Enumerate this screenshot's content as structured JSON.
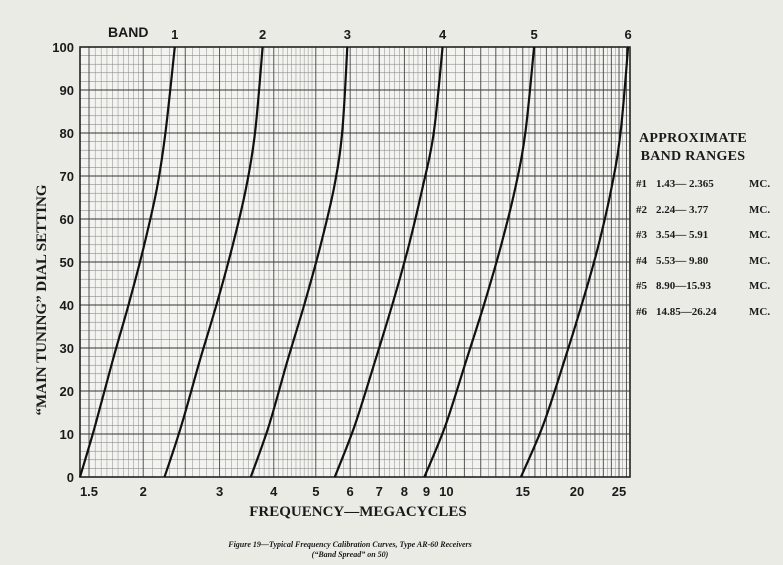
{
  "chart_data": {
    "type": "line",
    "xlabel": "FREQUENCY—MEGACYCLES",
    "ylabel": "“MAIN TUNING” DIAL SETTING",
    "x_scale": "log",
    "xlim": [
      1.43,
      26.5
    ],
    "ylim": [
      0,
      100
    ],
    "grid": true,
    "x_ticks": [
      "1.5",
      "2",
      "3",
      "4",
      "5",
      "6",
      "7",
      "8",
      "9",
      "10",
      "15",
      "20",
      "25"
    ],
    "y_ticks": [
      "0",
      "10",
      "20",
      "30",
      "40",
      "50",
      "60",
      "70",
      "80",
      "90",
      "100"
    ],
    "band_header": "BAND",
    "series": [
      {
        "name": "1",
        "x": [
          1.43,
          1.55,
          1.7,
          1.85,
          2.0,
          2.15,
          2.25,
          2.365
        ],
        "y": [
          0,
          12,
          27,
          40,
          53,
          67,
          80,
          100
        ]
      },
      {
        "name": "2",
        "x": [
          2.24,
          2.45,
          2.7,
          2.95,
          3.2,
          3.45,
          3.62,
          3.77
        ],
        "y": [
          0,
          12,
          27,
          40,
          53,
          67,
          80,
          100
        ]
      },
      {
        "name": "3",
        "x": [
          3.54,
          3.9,
          4.3,
          4.7,
          5.1,
          5.5,
          5.75,
          5.91
        ],
        "y": [
          0,
          12,
          27,
          40,
          53,
          67,
          80,
          100
        ]
      },
      {
        "name": "4",
        "x": [
          5.53,
          6.15,
          6.85,
          7.5,
          8.15,
          8.8,
          9.35,
          9.8
        ],
        "y": [
          0,
          12,
          27,
          40,
          53,
          67,
          80,
          100
        ]
      },
      {
        "name": "5",
        "x": [
          8.9,
          9.95,
          11.1,
          12.2,
          13.3,
          14.4,
          15.2,
          15.93
        ],
        "y": [
          0,
          12,
          27,
          40,
          53,
          67,
          80,
          100
        ]
      },
      {
        "name": "6",
        "x": [
          14.85,
          16.7,
          18.7,
          20.5,
          22.3,
          24.0,
          25.2,
          26.24
        ],
        "y": [
          0,
          12,
          27,
          40,
          53,
          67,
          80,
          100
        ]
      }
    ]
  },
  "legend": {
    "title_line1": "APPROXIMATE",
    "title_line2": "BAND RANGES",
    "rows": [
      {
        "band": "#1",
        "range": "1.43— 2.365",
        "unit": "MC."
      },
      {
        "band": "#2",
        "range": "2.24— 3.77",
        "unit": "MC."
      },
      {
        "band": "#3",
        "range": "3.54— 5.91",
        "unit": "MC."
      },
      {
        "band": "#4",
        "range": "5.53— 9.80",
        "unit": "MC."
      },
      {
        "band": "#5",
        "range": "8.90—15.93",
        "unit": "MC."
      },
      {
        "band": "#6",
        "range": "14.85—26.24",
        "unit": "MC."
      }
    ]
  },
  "caption": {
    "line1": "Figure 19—Typical Frequency Calibration Curves, Type AR-60 Receivers",
    "line2": "(“Band Spread” on 50)"
  }
}
